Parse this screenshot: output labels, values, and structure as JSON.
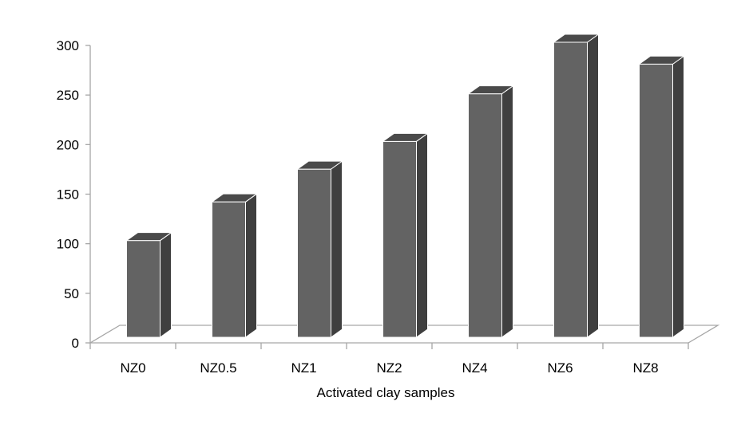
{
  "chart_data": {
    "type": "bar",
    "title": "",
    "xlabel": "Activated clay samples",
    "ylabel": "",
    "categories": [
      "NZ0",
      "NZ0.5",
      "NZ1",
      "NZ2",
      "NZ4",
      "NZ6",
      "NZ8"
    ],
    "values": [
      100,
      139,
      172,
      200,
      248,
      300,
      278
    ],
    "ylim": [
      0,
      300
    ],
    "yticks": [
      "0",
      "50",
      "100",
      "150",
      "200",
      "250",
      "300"
    ],
    "grid": false,
    "legend": "none",
    "colors": {
      "bar_front": "#636363",
      "bar_side": "#3f3f3f",
      "bar_top": "#4a4a4a",
      "bar_edge": "#ffffff",
      "floor": "#ffffff",
      "axis": "#a6a6a6"
    }
  }
}
